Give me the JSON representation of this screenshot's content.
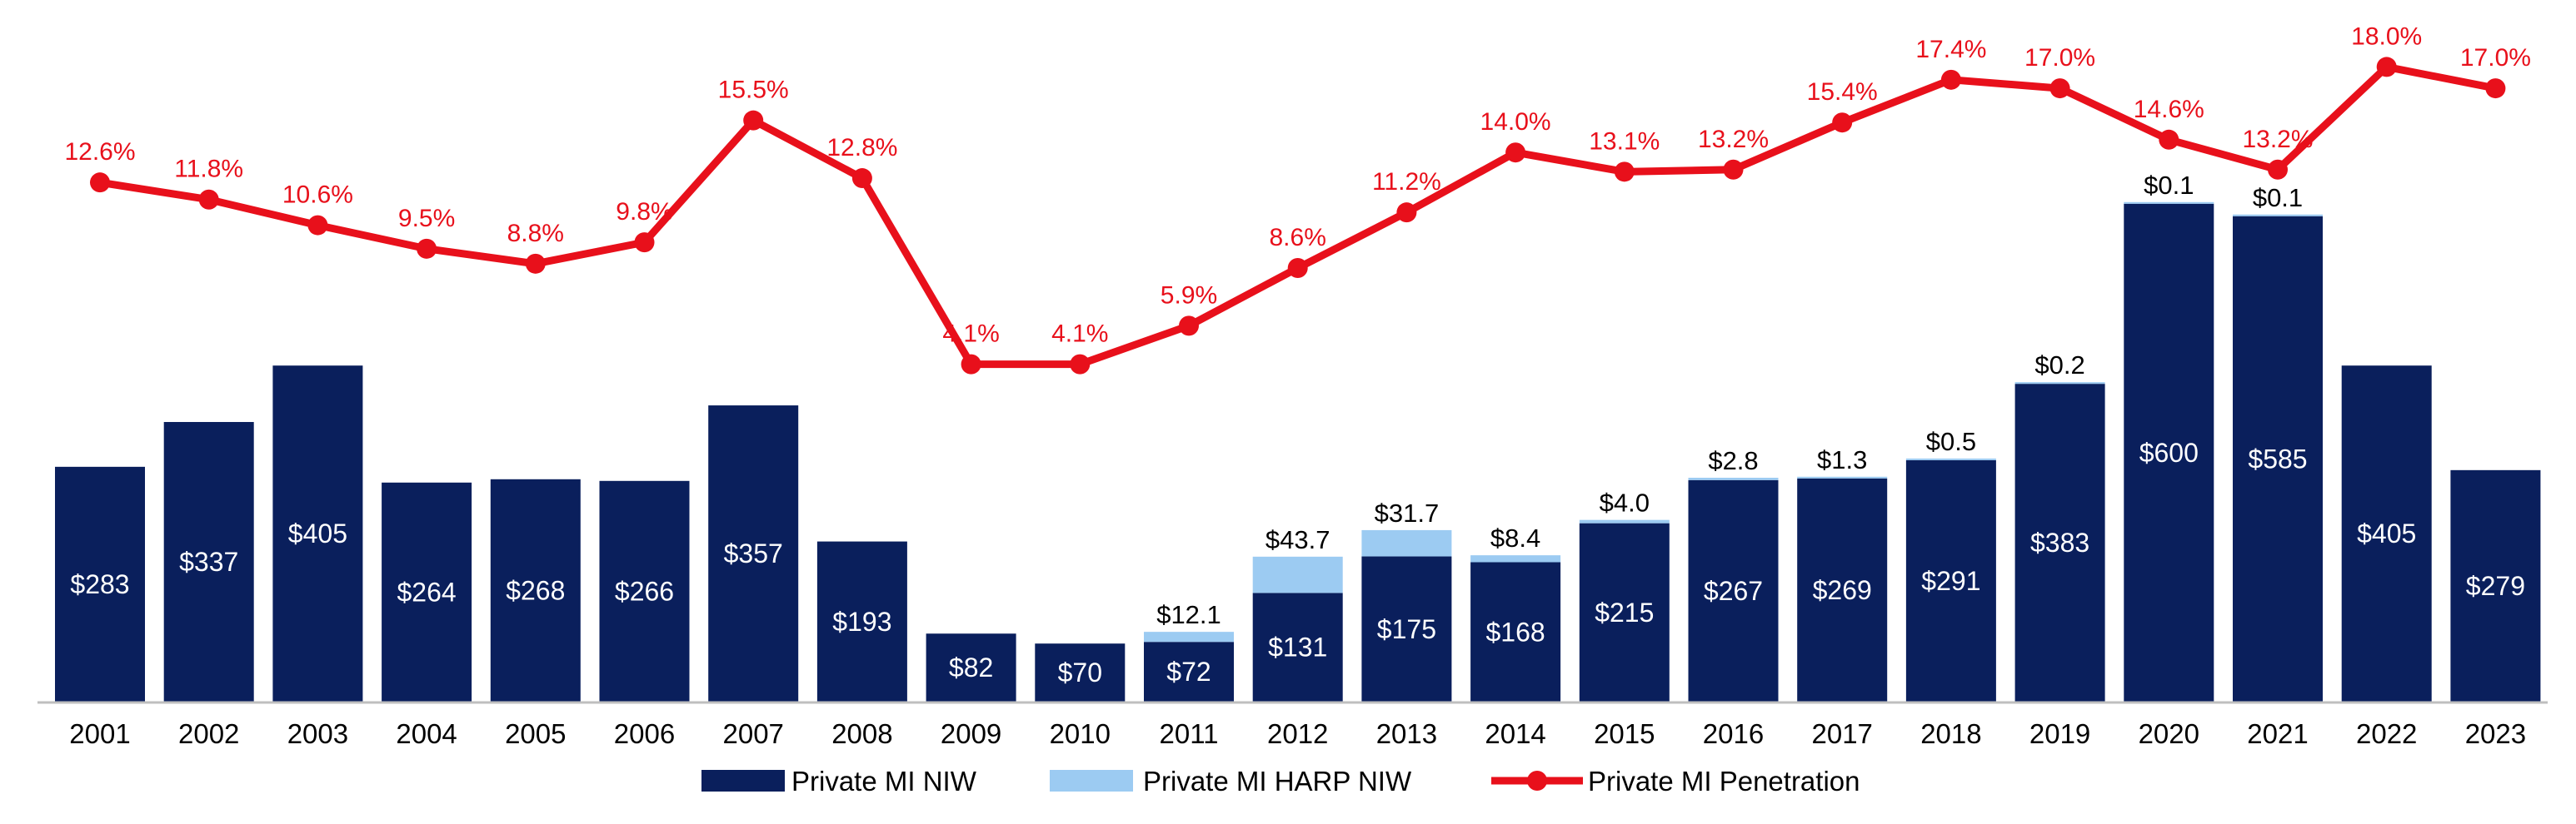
{
  "chart_data": {
    "type": "bar",
    "categories": [
      "2001",
      "2002",
      "2003",
      "2004",
      "2005",
      "2006",
      "2007",
      "2008",
      "2009",
      "2010",
      "2011",
      "2012",
      "2013",
      "2014",
      "2015",
      "2016",
      "2017",
      "2018",
      "2019",
      "2020",
      "2021",
      "2022",
      "2023"
    ],
    "series": [
      {
        "name": "Private MI NIW",
        "type": "bar",
        "color": "#0a1f5c",
        "values": [
          283,
          337,
          405,
          264,
          268,
          266,
          357,
          193,
          82,
          70,
          72,
          131,
          175,
          168,
          215,
          267,
          269,
          291,
          383,
          600,
          585,
          405,
          279
        ],
        "labels": [
          "$283",
          "$337",
          "$405",
          "$264",
          "$268",
          "$266",
          "$357",
          "$193",
          "$82",
          "$70",
          "$72",
          "$131",
          "$175",
          "$168",
          "$215",
          "$267",
          "$269",
          "$291",
          "$383",
          "$600",
          "$585",
          "$405",
          "$279"
        ]
      },
      {
        "name": "Private MI HARP NIW",
        "type": "bar-stacked",
        "color": "#9ccbf2",
        "values": [
          null,
          null,
          null,
          null,
          null,
          null,
          null,
          null,
          null,
          null,
          12.1,
          43.7,
          31.7,
          8.4,
          4.0,
          2.8,
          1.3,
          0.5,
          0.2,
          0.1,
          0.1,
          null,
          null
        ],
        "labels": [
          null,
          null,
          null,
          null,
          null,
          null,
          null,
          null,
          null,
          null,
          "$12.1",
          "$43.7",
          "$31.7",
          "$8.4",
          "$4.0",
          "$2.8",
          "$1.3",
          "$0.5",
          "$0.2",
          "$0.1",
          "$0.1",
          null,
          null
        ]
      },
      {
        "name": "Private MI Penetration",
        "type": "line",
        "color": "#e8101b",
        "values": [
          12.6,
          11.8,
          10.6,
          9.5,
          8.8,
          9.8,
          15.5,
          12.8,
          4.1,
          4.1,
          5.9,
          8.6,
          11.2,
          14.0,
          13.1,
          13.2,
          15.4,
          17.4,
          17.0,
          14.6,
          13.2,
          18.0,
          17.0
        ],
        "labels": [
          "12.6%",
          "11.8%",
          "10.6%",
          "9.5%",
          "8.8%",
          "9.8%",
          "15.5%",
          "12.8%",
          "4.1%",
          "4.1%",
          "5.9%",
          "8.6%",
          "11.2%",
          "14.0%",
          "13.1%",
          "13.2%",
          "15.4%",
          "17.4%",
          "17.0%",
          "14.6%",
          "13.2%",
          "18.0%",
          "17.0%"
        ]
      }
    ],
    "legend": {
      "position": "bottom",
      "items": [
        "Private MI NIW",
        "Private MI HARP NIW",
        "Private MI Penetration"
      ]
    },
    "grid": false
  }
}
